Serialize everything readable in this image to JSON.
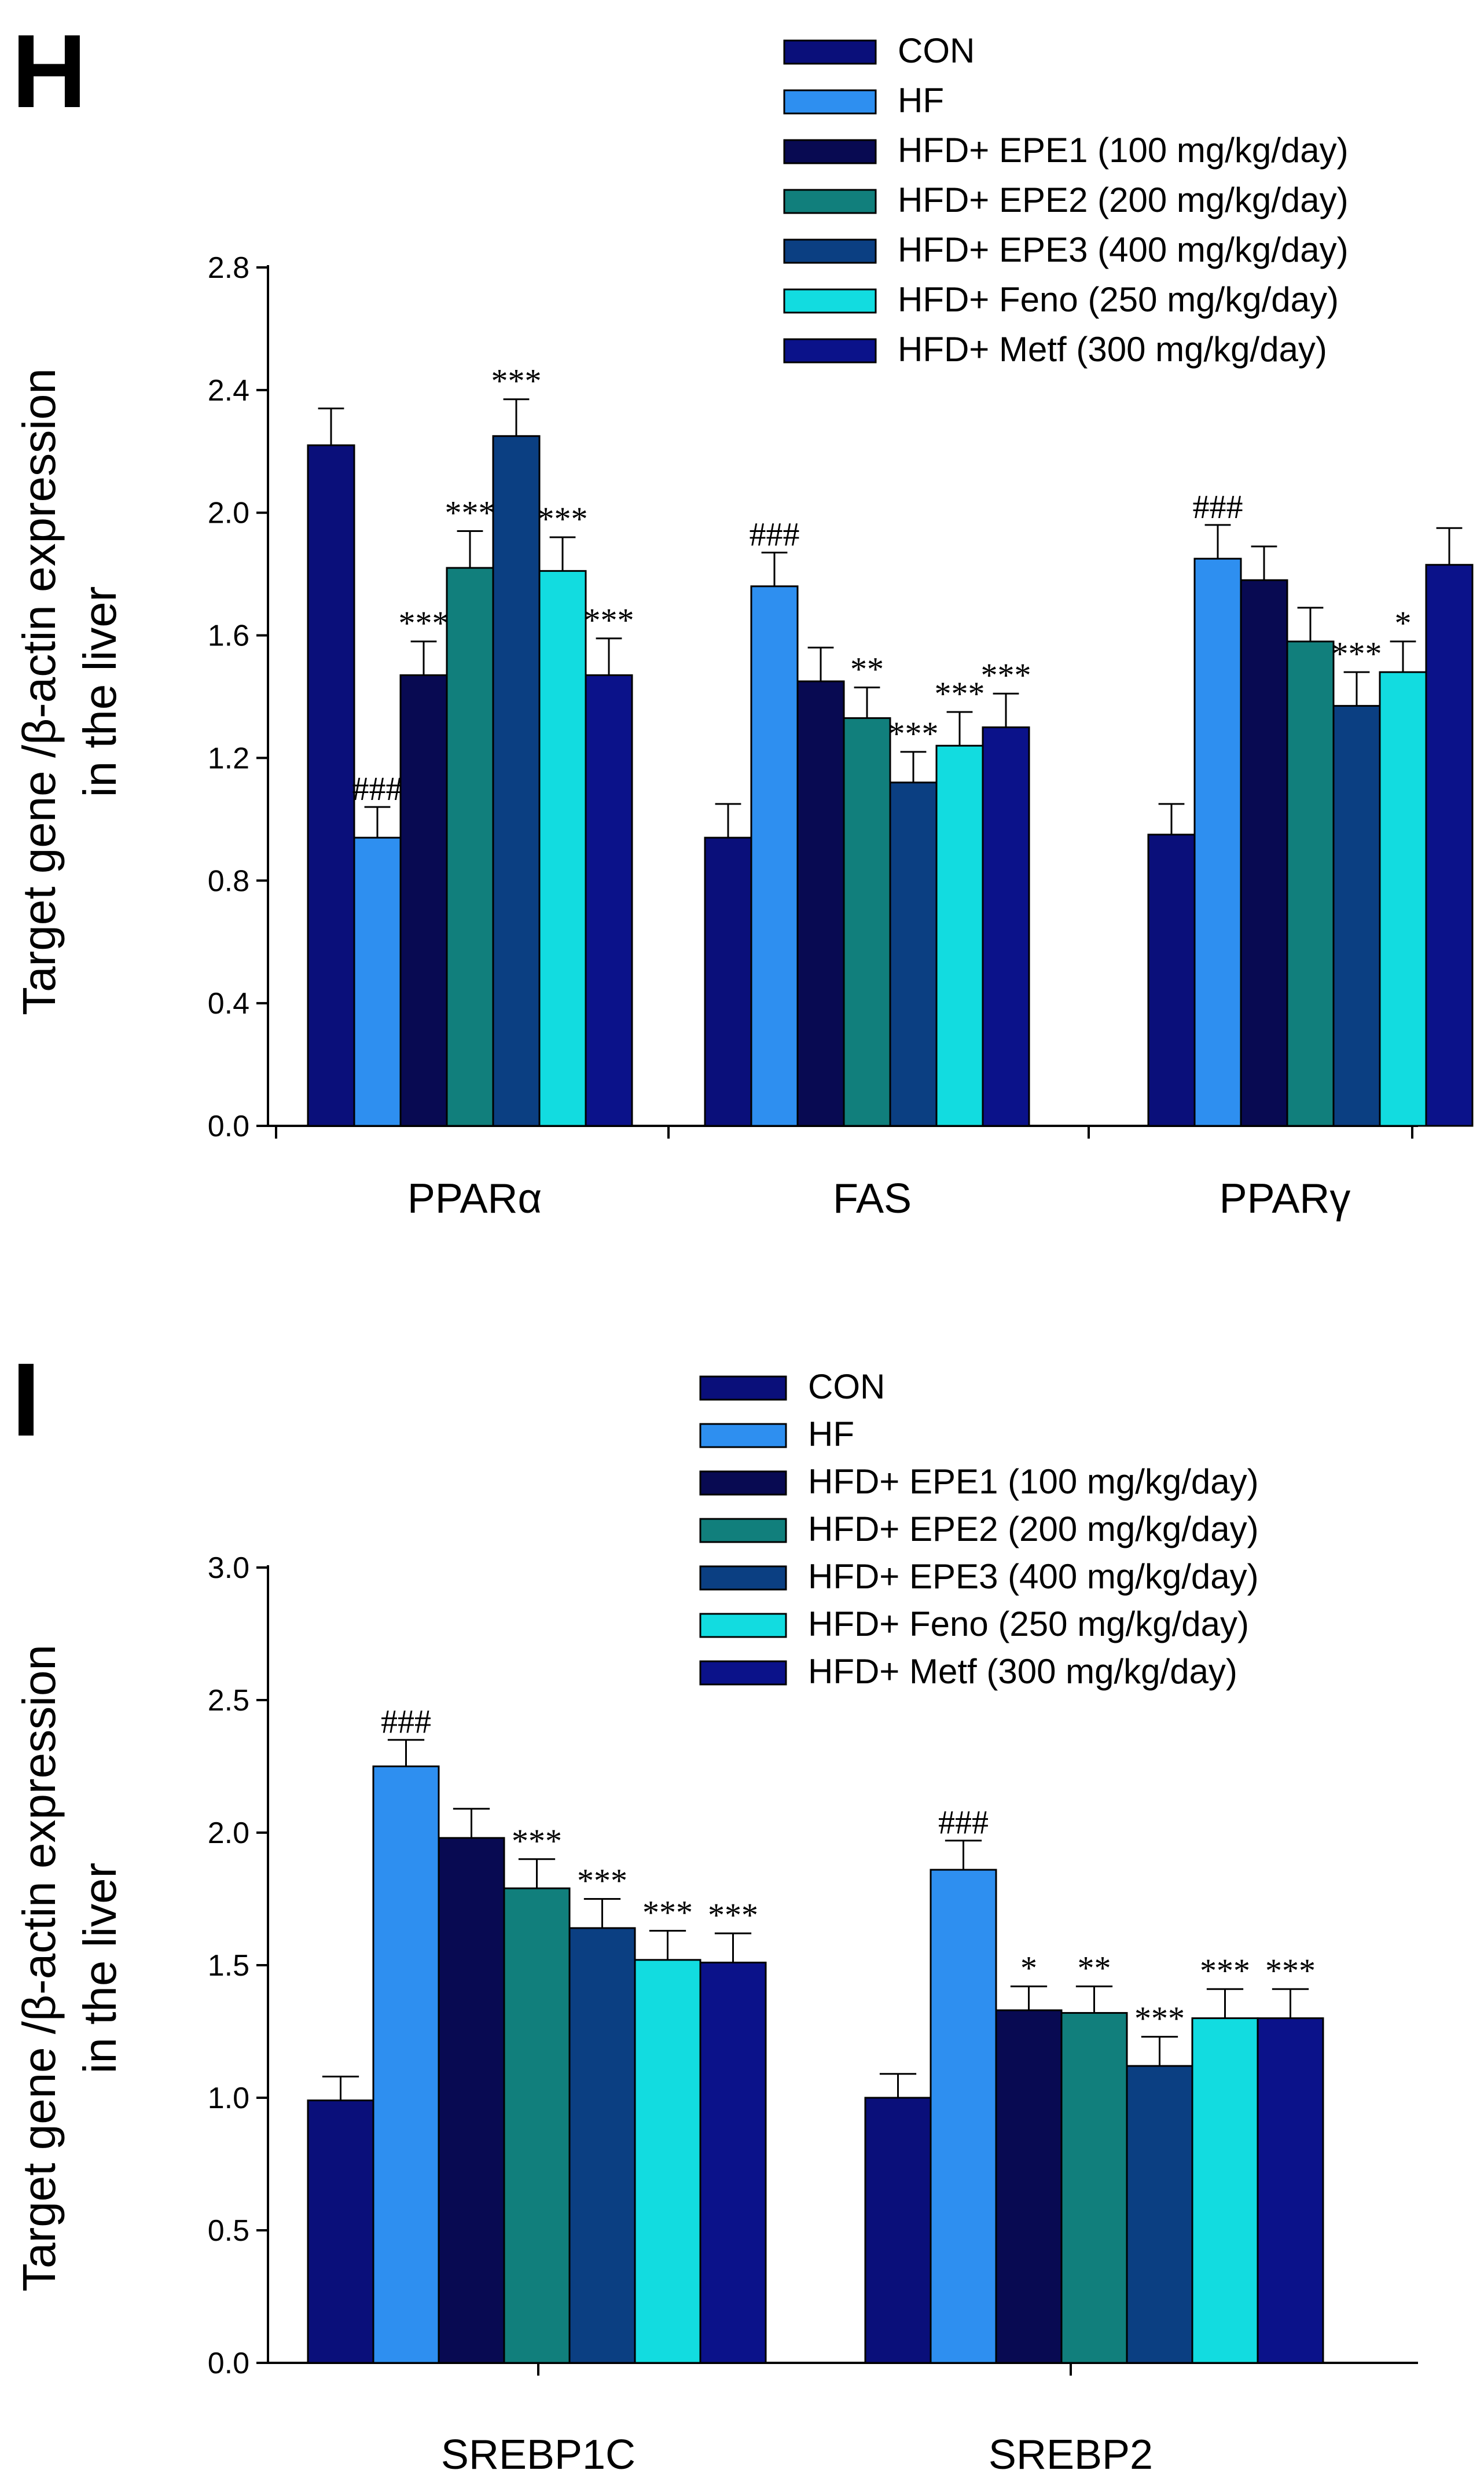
{
  "chart_data": [
    {
      "type": "bar",
      "panel": "H",
      "ylabel_line1": "Target gene /β-actin expression",
      "ylabel_line2": "in the liver",
      "xlabel": "",
      "ylim": [
        0,
        2.8
      ],
      "yticks": [
        "0.0",
        "0.4",
        "0.8",
        "1.2",
        "1.6",
        "2.0",
        "2.4",
        "2.8"
      ],
      "categories": [
        "PPARα",
        "FAS",
        "PPARγ"
      ],
      "legend": [
        "CON",
        "HF",
        "HFD+ EPE1 (100 mg/kg/day)",
        "HFD+ EPE2 (200 mg/kg/day)",
        "HFD+ EPE3 (400 mg/kg/day)",
        "HFD+ Feno (250 mg/kg/day)",
        "HFD+ Metf (300 mg/kg/day)"
      ],
      "colors": [
        "#0a0f7a",
        "#2e8ff0",
        "#080a52",
        "#117f7c",
        "#0b3f82",
        "#12dce0",
        "#0b128a"
      ],
      "series": [
        {
          "name": "CON",
          "values": [
            2.22,
            0.94,
            0.95
          ],
          "errors": [
            0.12,
            0.11,
            0.1
          ],
          "sig": [
            "",
            "",
            ""
          ]
        },
        {
          "name": "HF",
          "values": [
            0.94,
            1.76,
            1.85
          ],
          "errors": [
            0.1,
            0.11,
            0.11
          ],
          "sig": [
            "###",
            "###",
            "###"
          ]
        },
        {
          "name": "HFD+ EPE1 (100 mg/kg/day)",
          "values": [
            1.47,
            1.45,
            1.78
          ],
          "errors": [
            0.11,
            0.11,
            0.11
          ],
          "sig": [
            "***",
            "",
            ""
          ]
        },
        {
          "name": "HFD+ EPE2 (200 mg/kg/day)",
          "values": [
            1.82,
            1.33,
            1.58
          ],
          "errors": [
            0.12,
            0.1,
            0.11
          ],
          "sig": [
            "***",
            "**",
            ""
          ]
        },
        {
          "name": "HFD+ EPE3 (400 mg/kg/day)",
          "values": [
            2.25,
            1.12,
            1.37
          ],
          "errors": [
            0.12,
            0.1,
            0.11
          ],
          "sig": [
            "***",
            "***",
            "***"
          ]
        },
        {
          "name": "HFD+ Feno (250 mg/kg/day)",
          "values": [
            1.81,
            1.24,
            1.48
          ],
          "errors": [
            0.11,
            0.11,
            0.1
          ],
          "sig": [
            "***",
            "***",
            "*"
          ]
        },
        {
          "name": "HFD+ Metf (300 mg/kg/day)",
          "values": [
            1.47,
            1.3,
            1.83
          ],
          "errors": [
            0.12,
            0.11,
            0.12
          ],
          "sig": [
            "***",
            "***",
            ""
          ]
        }
      ]
    },
    {
      "type": "bar",
      "panel": "I",
      "ylabel_line1": "Target gene /β-actin expression",
      "ylabel_line2": "in the liver",
      "xlabel": "",
      "ylim": [
        0,
        3.0
      ],
      "yticks": [
        "0.0",
        "0.5",
        "1.0",
        "1.5",
        "2.0",
        "2.5",
        "3.0"
      ],
      "categories": [
        "SREBP1C",
        "SREBP2"
      ],
      "legend": [
        "CON",
        "HF",
        "HFD+ EPE1 (100 mg/kg/day)",
        "HFD+ EPE2 (200 mg/kg/day)",
        "HFD+ EPE3 (400 mg/kg/day)",
        "HFD+ Feno (250 mg/kg/day)",
        "HFD+ Metf (300 mg/kg/day)"
      ],
      "colors": [
        "#0a0f7a",
        "#2e8ff0",
        "#080a52",
        "#117f7c",
        "#0b3f82",
        "#12dce0",
        "#0b128a"
      ],
      "series": [
        {
          "name": "CON",
          "values": [
            0.99,
            1.0
          ],
          "errors": [
            0.09,
            0.09
          ],
          "sig": [
            "",
            ""
          ]
        },
        {
          "name": "HF",
          "values": [
            2.25,
            1.86
          ],
          "errors": [
            0.1,
            0.11
          ],
          "sig": [
            "###",
            "###"
          ]
        },
        {
          "name": "HFD+ EPE1 (100 mg/kg/day)",
          "values": [
            1.98,
            1.33
          ],
          "errors": [
            0.11,
            0.09
          ],
          "sig": [
            "",
            "*"
          ]
        },
        {
          "name": "HFD+ EPE2 (200 mg/kg/day)",
          "values": [
            1.79,
            1.32
          ],
          "errors": [
            0.11,
            0.1
          ],
          "sig": [
            "***",
            "**"
          ]
        },
        {
          "name": "HFD+ EPE3 (400 mg/kg/day)",
          "values": [
            1.64,
            1.12
          ],
          "errors": [
            0.11,
            0.11
          ],
          "sig": [
            "***",
            "***"
          ]
        },
        {
          "name": "HFD+ Feno (250 mg/kg/day)",
          "values": [
            1.52,
            1.3
          ],
          "errors": [
            0.11,
            0.11
          ],
          "sig": [
            "***",
            "***"
          ]
        },
        {
          "name": "HFD+ Metf (300 mg/kg/day)",
          "values": [
            1.51,
            1.3
          ],
          "errors": [
            0.11,
            0.11
          ],
          "sig": [
            "***",
            "***"
          ]
        }
      ]
    }
  ]
}
